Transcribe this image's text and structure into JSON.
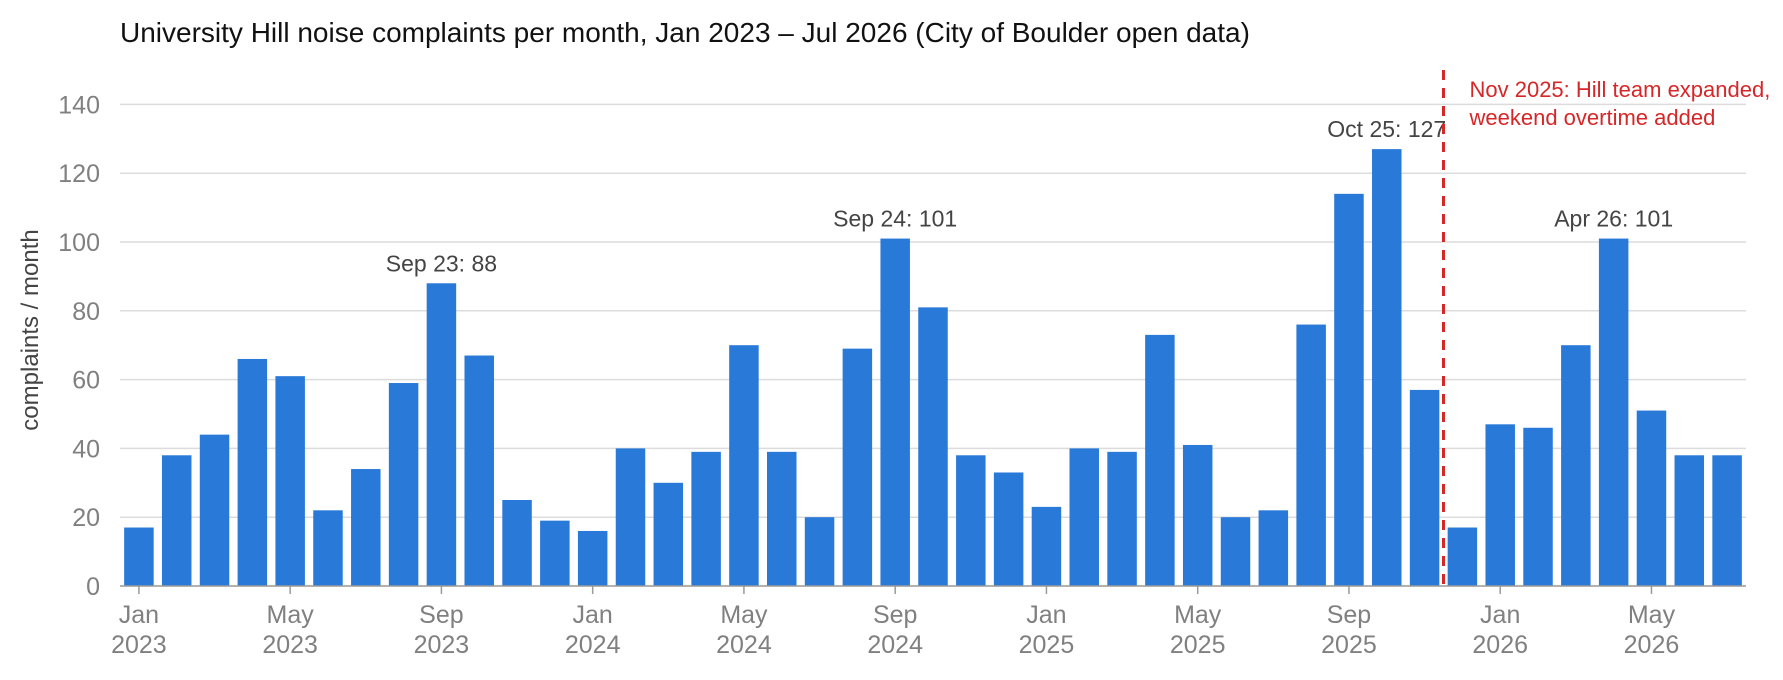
{
  "chart_data": {
    "type": "bar",
    "title": "University Hill noise complaints per month, Jan 2023 – Jul 2026 (City of Boulder open data)",
    "xlabel": "",
    "ylabel": "complaints / month",
    "ylim": [
      0,
      150
    ],
    "yticks": [
      0,
      20,
      40,
      60,
      80,
      100,
      120,
      140
    ],
    "grid": true,
    "bar_color": "#2979d9",
    "categories": [
      "2023-01",
      "2023-02",
      "2023-03",
      "2023-04",
      "2023-05",
      "2023-06",
      "2023-07",
      "2023-08",
      "2023-09",
      "2023-10",
      "2023-11",
      "2023-12",
      "2024-01",
      "2024-02",
      "2024-03",
      "2024-04",
      "2024-05",
      "2024-06",
      "2024-07",
      "2024-08",
      "2024-09",
      "2024-10",
      "2024-11",
      "2024-12",
      "2025-01",
      "2025-02",
      "2025-03",
      "2025-04",
      "2025-05",
      "2025-06",
      "2025-07",
      "2025-08",
      "2025-09",
      "2025-10",
      "2025-11",
      "2025-12",
      "2026-01",
      "2026-02",
      "2026-03",
      "2026-04",
      "2026-05",
      "2026-06",
      "2026-07"
    ],
    "values": [
      17,
      38,
      44,
      66,
      61,
      22,
      34,
      59,
      88,
      67,
      25,
      19,
      16,
      40,
      30,
      39,
      70,
      39,
      20,
      69,
      101,
      81,
      38,
      33,
      23,
      40,
      39,
      73,
      41,
      20,
      22,
      76,
      114,
      127,
      57,
      17,
      47,
      46,
      70,
      101,
      51,
      38,
      38
    ],
    "xtick_labels": [
      {
        "index": 0,
        "month": "Jan",
        "year": "2023"
      },
      {
        "index": 4,
        "month": "May",
        "year": "2023"
      },
      {
        "index": 8,
        "month": "Sep",
        "year": "2023"
      },
      {
        "index": 12,
        "month": "Jan",
        "year": "2024"
      },
      {
        "index": 16,
        "month": "May",
        "year": "2024"
      },
      {
        "index": 20,
        "month": "Sep",
        "year": "2024"
      },
      {
        "index": 24,
        "month": "Jan",
        "year": "2025"
      },
      {
        "index": 28,
        "month": "May",
        "year": "2025"
      },
      {
        "index": 32,
        "month": "Sep",
        "year": "2025"
      },
      {
        "index": 36,
        "month": "Jan",
        "year": "2026"
      },
      {
        "index": 40,
        "month": "May",
        "year": "2026"
      }
    ],
    "annotations": [
      {
        "index": 8,
        "text": "Sep 23: 88"
      },
      {
        "index": 20,
        "text": "Sep 24: 101"
      },
      {
        "index": 33,
        "text": "Oct 25: 127"
      },
      {
        "index": 39,
        "text": "Apr 26: 101"
      }
    ],
    "event": {
      "after_index": 34,
      "color": "#d62728",
      "lines": [
        "Nov 2025: Hill team expanded,",
        "weekend overtime added"
      ]
    }
  }
}
